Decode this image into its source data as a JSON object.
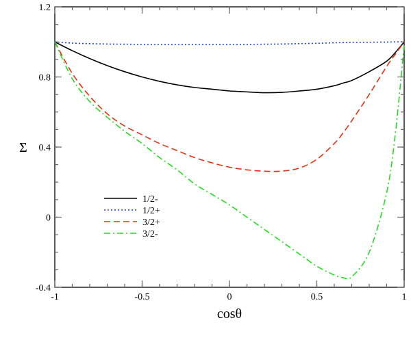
{
  "chart_data": {
    "type": "line",
    "title": "",
    "xlabel": "cosθ",
    "ylabel": "Σ",
    "xlim": [
      -1,
      1
    ],
    "ylim": [
      -0.4,
      1.2
    ],
    "x_ticks": [
      -1,
      -0.5,
      0,
      0.5,
      1
    ],
    "x_tick_labels": [
      "-1",
      "-0.5",
      "0",
      "0.5",
      "1"
    ],
    "y_ticks": [
      -0.4,
      0,
      0.4,
      0.8,
      1.2
    ],
    "y_tick_labels": [
      "-0.4",
      "0",
      "0.4",
      "0.8",
      "1.2"
    ],
    "grid": false,
    "legend_position": "lower-left",
    "x": [
      -1,
      -0.9,
      -0.8,
      -0.7,
      -0.6,
      -0.5,
      -0.4,
      -0.3,
      -0.2,
      -0.1,
      0,
      0.1,
      0.2,
      0.3,
      0.4,
      0.5,
      0.6,
      0.65,
      0.7,
      0.8,
      0.9,
      0.95,
      1
    ],
    "series": [
      {
        "name": "1/2-",
        "color": "#000000",
        "dash": "solid",
        "values": [
          1.0,
          0.95,
          0.905,
          0.865,
          0.83,
          0.8,
          0.775,
          0.755,
          0.74,
          0.73,
          0.72,
          0.715,
          0.71,
          0.712,
          0.72,
          0.73,
          0.75,
          0.765,
          0.78,
          0.83,
          0.89,
          0.94,
          1.0
        ]
      },
      {
        "name": "1/2+",
        "color": "#1f3fe0",
        "dash": "dotted",
        "values": [
          1.0,
          0.993,
          0.99,
          0.988,
          0.987,
          0.986,
          0.986,
          0.986,
          0.986,
          0.986,
          0.986,
          0.986,
          0.987,
          0.988,
          0.99,
          0.992,
          0.995,
          0.996,
          0.997,
          0.998,
          0.999,
          1.0,
          1.0
        ]
      },
      {
        "name": "3/2+",
        "color": "#e63011",
        "dash": "dashed",
        "values": [
          1.0,
          0.82,
          0.69,
          0.59,
          0.52,
          0.47,
          0.42,
          0.38,
          0.34,
          0.31,
          0.285,
          0.27,
          0.262,
          0.263,
          0.28,
          0.33,
          0.42,
          0.48,
          0.55,
          0.7,
          0.86,
          0.93,
          1.0
        ]
      },
      {
        "name": "3/2-",
        "color": "#22dd22",
        "dash": "dashdot",
        "values": [
          1.0,
          0.79,
          0.66,
          0.57,
          0.49,
          0.42,
          0.34,
          0.27,
          0.19,
          0.13,
          0.07,
          0.0,
          -0.07,
          -0.14,
          -0.21,
          -0.28,
          -0.33,
          -0.345,
          -0.34,
          -0.2,
          0.14,
          0.48,
          0.98
        ]
      }
    ]
  }
}
